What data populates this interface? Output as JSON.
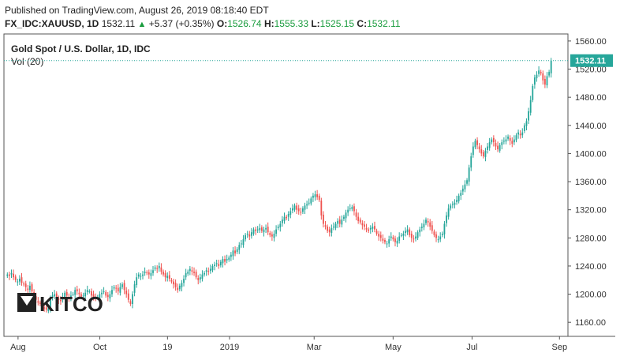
{
  "header": {
    "published": "Published on TradingView.com, August 26, 2019 08:18:40 EDT",
    "symbol": "FX_IDC:XAUUSD, 1D",
    "last": "1532.11",
    "change": "+5.37 (+0.35%)",
    "open_label": "O:",
    "open": "1526.74",
    "high_label": "H:",
    "high": "1555.33",
    "low_label": "L:",
    "low": "1525.15",
    "close_label": "C:",
    "close": "1532.11"
  },
  "legend": {
    "title": "Gold Spot / U.S. Dollar, 1D, IDC",
    "vol": "Vol (20)"
  },
  "logo": {
    "text": "KITCO"
  },
  "colors": {
    "up": "#26a69a",
    "down": "#ef5350",
    "last_line": "#26a69a",
    "axis": "#555555"
  },
  "chart_data": {
    "type": "candlestick",
    "ylim": [
      1140,
      1570
    ],
    "y_ticks": [
      "1160.00",
      "1200.00",
      "1240.00",
      "1280.00",
      "1320.00",
      "1360.00",
      "1400.00",
      "1440.00",
      "1480.00",
      "1520.00",
      "1560.00"
    ],
    "x_ticks": [
      "Aug",
      "Oct",
      "19",
      "2019",
      "Mar",
      "May",
      "Jul",
      "Sep"
    ],
    "last_price_label": "1532.11",
    "last_price": 1532.11,
    "close_series": [
      1228,
      1226,
      1230,
      1224,
      1220,
      1218,
      1222,
      1216,
      1214,
      1210,
      1206,
      1212,
      1204,
      1196,
      1192,
      1188,
      1186,
      1182,
      1180,
      1178,
      1180,
      1194,
      1198,
      1200,
      1196,
      1192,
      1190,
      1196,
      1202,
      1198,
      1194,
      1198,
      1200,
      1206,
      1204,
      1200,
      1196,
      1198,
      1202,
      1206,
      1204,
      1198,
      1196,
      1194,
      1196,
      1200,
      1202,
      1204,
      1198,
      1196,
      1200,
      1206,
      1210,
      1208,
      1204,
      1210,
      1214,
      1206,
      1200,
      1192,
      1186,
      1200,
      1214,
      1224,
      1228,
      1226,
      1228,
      1232,
      1230,
      1228,
      1230,
      1234,
      1238,
      1236,
      1240,
      1232,
      1228,
      1224,
      1226,
      1222,
      1218,
      1214,
      1210,
      1206,
      1212,
      1216,
      1222,
      1230,
      1232,
      1236,
      1232,
      1230,
      1224,
      1220,
      1224,
      1228,
      1230,
      1234,
      1232,
      1236,
      1240,
      1242,
      1244,
      1240,
      1246,
      1250,
      1246,
      1250,
      1252,
      1256,
      1262,
      1258,
      1264,
      1270,
      1272,
      1278,
      1284,
      1286,
      1282,
      1288,
      1292,
      1290,
      1292,
      1294,
      1290,
      1292,
      1294,
      1288,
      1284,
      1282,
      1286,
      1292,
      1296,
      1300,
      1306,
      1310,
      1308,
      1314,
      1318,
      1322,
      1326,
      1320,
      1318,
      1316,
      1322,
      1326,
      1328,
      1330,
      1336,
      1340,
      1342,
      1338,
      1334,
      1312,
      1300,
      1296,
      1290,
      1288,
      1294,
      1296,
      1300,
      1304,
      1300,
      1306,
      1310,
      1316,
      1320,
      1322,
      1324,
      1318,
      1310,
      1304,
      1302,
      1298,
      1296,
      1292,
      1290,
      1294,
      1296,
      1292,
      1286,
      1282,
      1280,
      1276,
      1274,
      1272,
      1278,
      1282,
      1278,
      1274,
      1276,
      1282,
      1284,
      1286,
      1290,
      1292,
      1284,
      1280,
      1278,
      1282,
      1288,
      1292,
      1296,
      1300,
      1306,
      1302,
      1296,
      1290,
      1284,
      1280,
      1278,
      1282,
      1286,
      1300,
      1312,
      1322,
      1326,
      1328,
      1330,
      1334,
      1340,
      1344,
      1350,
      1356,
      1362,
      1380,
      1396,
      1410,
      1418,
      1412,
      1406,
      1400,
      1396,
      1404,
      1410,
      1416,
      1420,
      1416,
      1410,
      1406,
      1412,
      1416,
      1418,
      1420,
      1424,
      1418,
      1414,
      1420,
      1426,
      1430,
      1426,
      1430,
      1440,
      1446,
      1460,
      1476,
      1496,
      1508,
      1512,
      1518,
      1514,
      1504,
      1498,
      1510,
      1516,
      1532
    ]
  }
}
